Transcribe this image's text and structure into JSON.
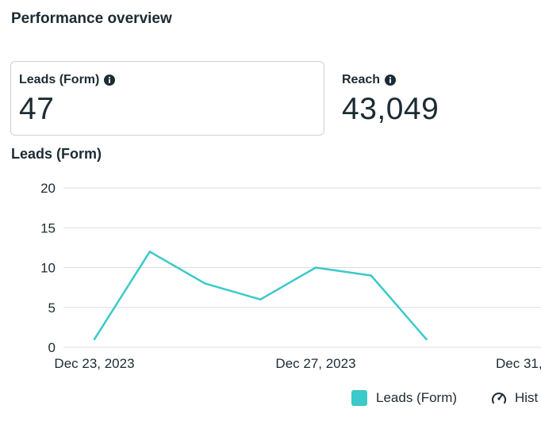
{
  "page": {
    "section_title": "Performance overview"
  },
  "metrics": [
    {
      "label": "Leads (Form)",
      "value": "47",
      "icon": "info-icon",
      "selected": true
    },
    {
      "label": "Reach",
      "value": "43,049",
      "icon": "info-icon",
      "selected": false
    }
  ],
  "chart_title": "Leads (Form)",
  "legend": {
    "series_label": "Leads (Form)",
    "series_color": "#3bc9c9",
    "toggle_label": "Hist",
    "toggle_icon": "gauge-icon"
  },
  "colors": {
    "text": "#1c2b33",
    "grid": "#dadde1",
    "series": "#3bc9c9"
  },
  "chart_data": {
    "type": "line",
    "x": [
      "2023-12-23",
      "2023-12-24",
      "2023-12-25",
      "2023-12-26",
      "2023-12-27",
      "2023-12-28",
      "2023-12-29"
    ],
    "series": [
      {
        "name": "Leads (Form)",
        "values": [
          1,
          12,
          8,
          6,
          10,
          9,
          1
        ]
      }
    ],
    "y_ticks": [
      0,
      5,
      10,
      15,
      20
    ],
    "x_tick_labels": [
      {
        "x": "2023-12-23",
        "label": "Dec 23, 2023"
      },
      {
        "x": "2023-12-27",
        "label": "Dec 27, 2023"
      },
      {
        "x": "2023-12-31",
        "label": "Dec 31,"
      }
    ],
    "ylim": [
      0,
      20
    ],
    "xlim": [
      "2023-12-23",
      "2023-12-31"
    ],
    "grid": true,
    "legend_position": "bottom-right",
    "title": "",
    "xlabel": "",
    "ylabel": ""
  }
}
